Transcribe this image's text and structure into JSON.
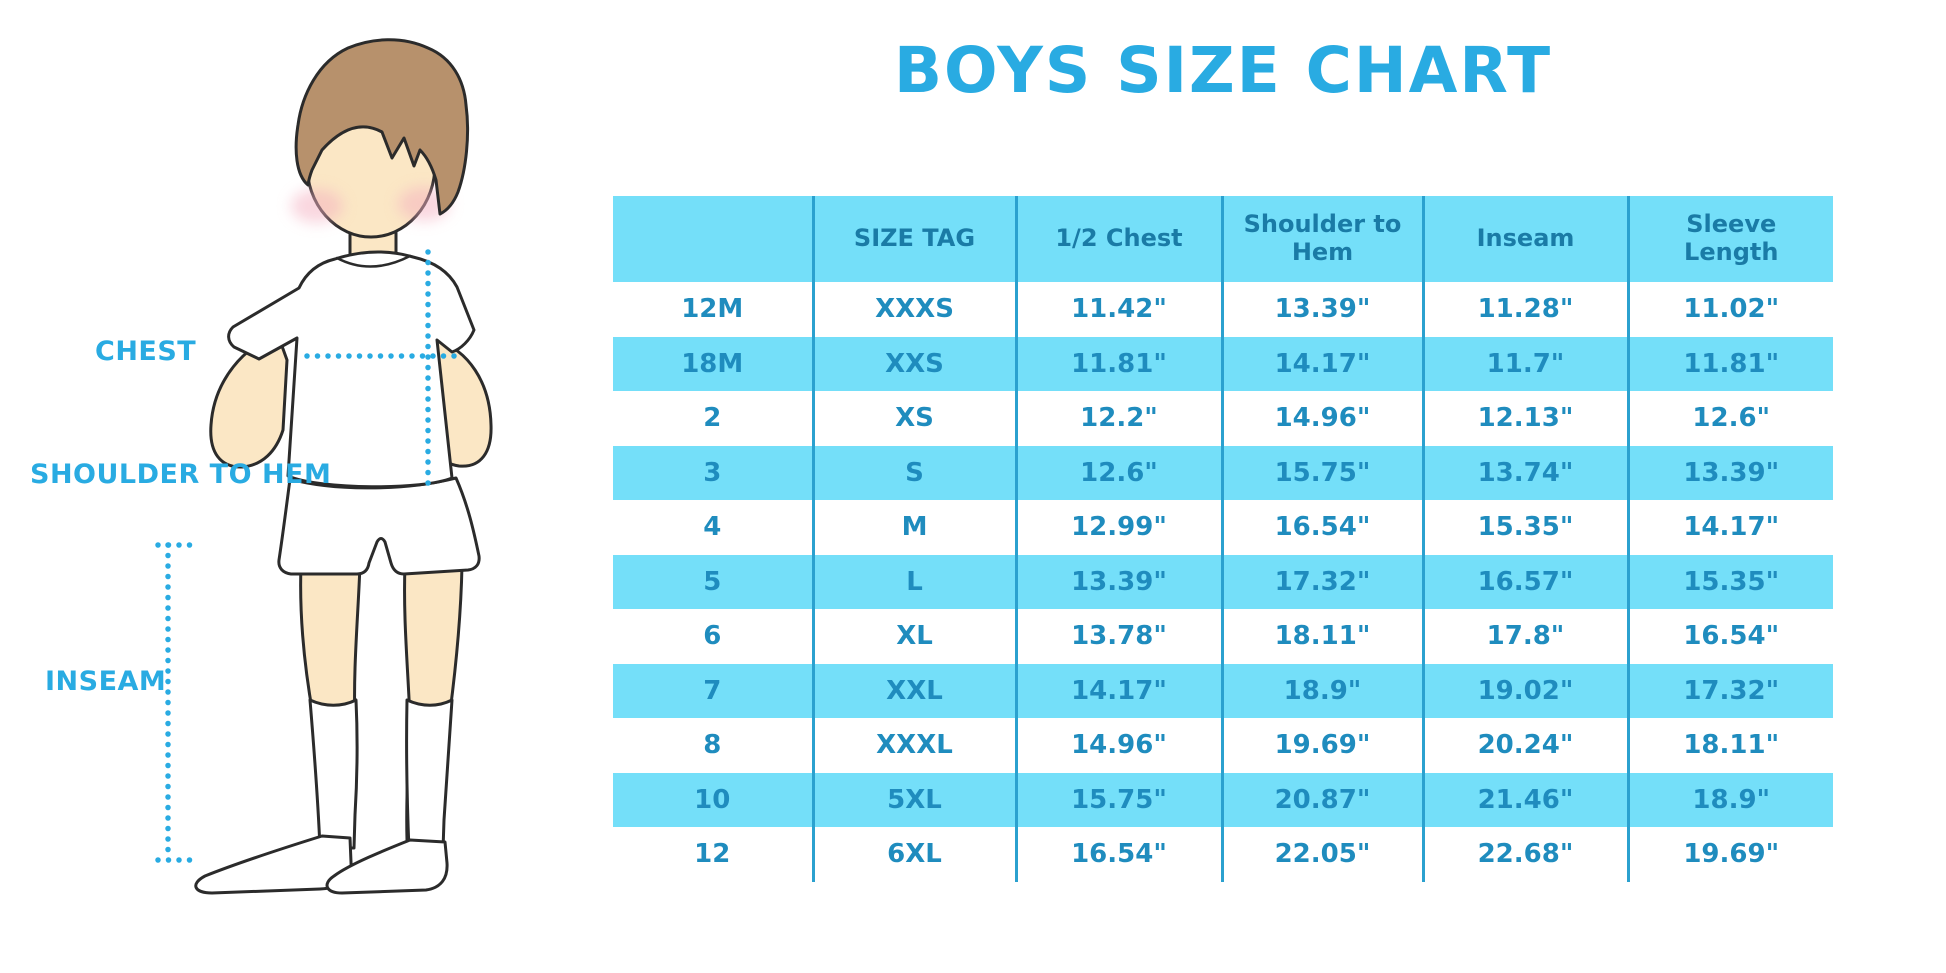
{
  "title": "BOYS SIZE CHART",
  "figure": {
    "labels": {
      "chest": "CHEST",
      "shoulder_to_hem": "SHOULDER TO HEM",
      "inseam": "INSEAM"
    }
  },
  "colors": {
    "accent_blue": "#29ABE2",
    "table_row_cyan": "#74DFF9",
    "table_divider": "#2BA1CF",
    "table_text": "#1F8CBE",
    "header_text": "#1A7BA6",
    "skin": "#FBE7C5",
    "hair": "#B7916C",
    "outline": "#2B2B2B",
    "blush": "#F4AFC0"
  },
  "chart_data": {
    "type": "table",
    "title": "BOYS SIZE CHART",
    "columns": [
      "",
      "SIZE TAG",
      "1/2 Chest",
      "Shoulder to Hem",
      "Inseam",
      "Sleeve Length"
    ],
    "rows": [
      [
        "12M",
        "XXXS",
        "11.42\"",
        "13.39\"",
        "11.28\"",
        "11.02\""
      ],
      [
        "18M",
        "XXS",
        "11.81\"",
        "14.17\"",
        "11.7\"",
        "11.81\""
      ],
      [
        "2",
        "XS",
        "12.2\"",
        "14.96\"",
        "12.13\"",
        "12.6\""
      ],
      [
        "3",
        "S",
        "12.6\"",
        "15.75\"",
        "13.74\"",
        "13.39\""
      ],
      [
        "4",
        "M",
        "12.99\"",
        "16.54\"",
        "15.35\"",
        "14.17\""
      ],
      [
        "5",
        "L",
        "13.39\"",
        "17.32\"",
        "16.57\"",
        "15.35\""
      ],
      [
        "6",
        "XL",
        "13.78\"",
        "18.11\"",
        "17.8\"",
        "16.54\""
      ],
      [
        "7",
        "XXL",
        "14.17\"",
        "18.9\"",
        "19.02\"",
        "17.32\""
      ],
      [
        "8",
        "XXXL",
        "14.96\"",
        "19.69\"",
        "20.24\"",
        "18.11\""
      ],
      [
        "10",
        "5XL",
        "15.75\"",
        "20.87\"",
        "21.46\"",
        "18.9\""
      ],
      [
        "12",
        "6XL",
        "16.54\"",
        "22.05\"",
        "22.68\"",
        "19.69\""
      ]
    ]
  }
}
